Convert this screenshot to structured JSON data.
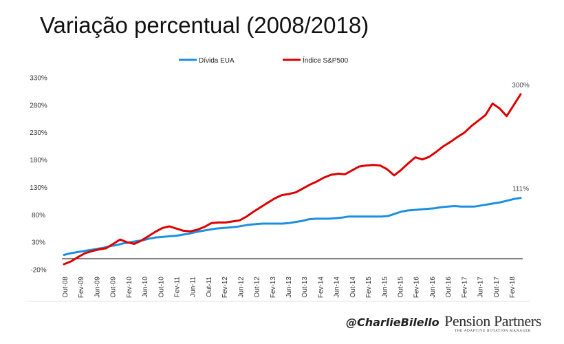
{
  "title": "Variação percentual (2008/2018)",
  "credit": "@CharlieBilello",
  "brand": {
    "name": "Pension Partners",
    "tagline": "THE ADAPTIVE ROTATION MANAGER"
  },
  "chart_data": {
    "type": "line",
    "legend": {
      "position": "top"
    },
    "ylim": [
      -20,
      330
    ],
    "yticks": [
      -20,
      30,
      80,
      130,
      180,
      230,
      280,
      330
    ],
    "ytick_labels": [
      "-20%",
      "30%",
      "80%",
      "130%",
      "180%",
      "230%",
      "280%",
      "330%"
    ],
    "xtick_labels": [
      "Out-08",
      "Fev-09",
      "Jun-09",
      "Out-09",
      "Fev-10",
      "Jun-10",
      "Out-10",
      "Fev-11",
      "Jun-11",
      "Out-11",
      "Fev-12",
      "Jun-12",
      "Out-12",
      "Fev-13",
      "Jun-13",
      "Out-13",
      "Fev-14",
      "Jun-14",
      "Out-14",
      "Fev-15",
      "Jun-15",
      "Out-15",
      "Fev-16",
      "Jun-16",
      "Out-16",
      "Fev-17",
      "Jun-17",
      "Out-17",
      "Fev-18"
    ],
    "baseline": 0,
    "series": [
      {
        "name": "Dívida EUA",
        "color": "#1b8fe0",
        "end_label": "111%",
        "values": [
          7,
          10,
          12,
          14,
          16,
          18,
          20,
          23,
          25,
          28,
          30,
          32,
          34,
          37,
          39,
          40,
          41,
          42,
          44,
          46,
          49,
          51,
          53,
          55,
          56,
          57,
          58,
          60,
          62,
          63,
          64,
          64,
          64,
          64,
          65,
          67,
          69,
          72,
          73,
          73,
          73,
          74,
          75,
          77,
          77,
          77,
          77,
          77,
          77,
          78,
          82,
          86,
          88,
          89,
          90,
          91,
          92,
          94,
          95,
          96,
          95,
          95,
          95,
          97,
          99,
          101,
          103,
          106,
          109,
          111
        ]
      },
      {
        "name": "Índice S&P500",
        "color": "#dd0000",
        "end_label": "300%",
        "values": [
          -10,
          -5,
          3,
          10,
          14,
          17,
          19,
          27,
          35,
          30,
          27,
          33,
          41,
          49,
          56,
          59,
          55,
          51,
          50,
          53,
          58,
          65,
          66,
          66,
          68,
          70,
          77,
          86,
          94,
          102,
          110,
          116,
          118,
          121,
          128,
          135,
          141,
          148,
          153,
          155,
          154,
          161,
          168,
          170,
          171,
          170,
          163,
          152,
          162,
          174,
          185,
          181,
          186,
          195,
          205,
          213,
          222,
          230,
          242,
          252,
          262,
          283,
          274,
          260,
          280,
          300
        ]
      }
    ]
  }
}
